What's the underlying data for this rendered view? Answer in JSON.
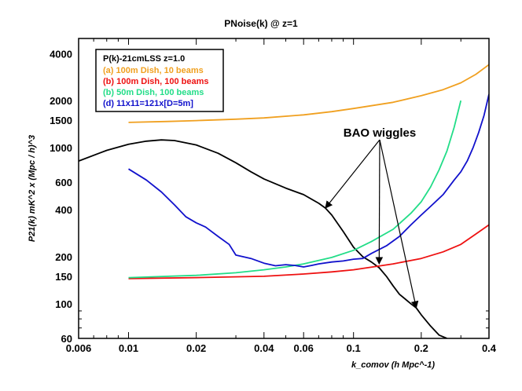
{
  "chart_data": {
    "type": "line",
    "title": "PNoise(k) @ z=1",
    "xlabel": "k_comov  (h Mpc^-1)",
    "ylabel": "P21(k) mK^2 x (Mpc / h)^3",
    "x_scale": "log",
    "y_scale": "log",
    "xlim": [
      0.006,
      0.4
    ],
    "ylim": [
      60,
      5000
    ],
    "x_ticks": [
      0.006,
      0.01,
      0.02,
      0.04,
      0.06,
      0.1,
      0.2,
      0.4
    ],
    "x_tick_labels": [
      "0.006",
      "0.01",
      "0.02",
      "0.04",
      "0.06",
      "0.1",
      "0.2",
      "0.4"
    ],
    "y_ticks": [
      60,
      100,
      150,
      200,
      400,
      600,
      1000,
      1500,
      2000,
      4000
    ],
    "y_tick_labels": [
      "60",
      "100",
      "150",
      "200",
      "400",
      "600",
      "1000",
      "1500",
      "2000",
      "4000"
    ],
    "grid": false,
    "legend_position": "top-left",
    "legend_title": "P(k)-21cmLSS z=1.0",
    "series": [
      {
        "name": "P(k)-21cmLSS z=1.0",
        "color": "#000000",
        "points": [
          [
            0.006,
            820
          ],
          [
            0.008,
            960
          ],
          [
            0.01,
            1050
          ],
          [
            0.012,
            1100
          ],
          [
            0.014,
            1120
          ],
          [
            0.016,
            1110
          ],
          [
            0.02,
            1040
          ],
          [
            0.025,
            920
          ],
          [
            0.03,
            800
          ],
          [
            0.035,
            700
          ],
          [
            0.04,
            630
          ],
          [
            0.05,
            550
          ],
          [
            0.06,
            500
          ],
          [
            0.07,
            440
          ],
          [
            0.075,
            410
          ],
          [
            0.08,
            370
          ],
          [
            0.09,
            290
          ],
          [
            0.1,
            230
          ],
          [
            0.11,
            200
          ],
          [
            0.12,
            185
          ],
          [
            0.13,
            170
          ],
          [
            0.14,
            150
          ],
          [
            0.15,
            130
          ],
          [
            0.16,
            115
          ],
          [
            0.17,
            107
          ],
          [
            0.18,
            100
          ],
          [
            0.19,
            94
          ],
          [
            0.2,
            85
          ],
          [
            0.22,
            72
          ],
          [
            0.24,
            63
          ],
          [
            0.26,
            60
          ]
        ]
      },
      {
        "name": "(a) 100m Dish, 10 beams",
        "color": "#f0a020",
        "points": [
          [
            0.01,
            1450
          ],
          [
            0.015,
            1470
          ],
          [
            0.02,
            1490
          ],
          [
            0.03,
            1520
          ],
          [
            0.04,
            1550
          ],
          [
            0.06,
            1620
          ],
          [
            0.08,
            1700
          ],
          [
            0.1,
            1780
          ],
          [
            0.15,
            1950
          ],
          [
            0.2,
            2150
          ],
          [
            0.25,
            2350
          ],
          [
            0.3,
            2600
          ],
          [
            0.35,
            2950
          ],
          [
            0.4,
            3400
          ]
        ]
      },
      {
        "name": "(b) 100m Dish, 100 beams",
        "color": "#ee1111",
        "points": [
          [
            0.01,
            145
          ],
          [
            0.02,
            147
          ],
          [
            0.04,
            150
          ],
          [
            0.06,
            155
          ],
          [
            0.08,
            160
          ],
          [
            0.1,
            165
          ],
          [
            0.15,
            180
          ],
          [
            0.2,
            195
          ],
          [
            0.25,
            215
          ],
          [
            0.3,
            240
          ],
          [
            0.35,
            280
          ],
          [
            0.4,
            320
          ]
        ]
      },
      {
        "name": "(b) 50m Dish, 100 beams",
        "color": "#22dd88",
        "points": [
          [
            0.01,
            147
          ],
          [
            0.02,
            152
          ],
          [
            0.03,
            158
          ],
          [
            0.04,
            165
          ],
          [
            0.05,
            172
          ],
          [
            0.06,
            180
          ],
          [
            0.08,
            198
          ],
          [
            0.1,
            220
          ],
          [
            0.12,
            250
          ],
          [
            0.15,
            300
          ],
          [
            0.18,
            380
          ],
          [
            0.2,
            450
          ],
          [
            0.22,
            560
          ],
          [
            0.24,
            720
          ],
          [
            0.26,
            950
          ],
          [
            0.28,
            1350
          ],
          [
            0.3,
            2000
          ]
        ]
      },
      {
        "name": "(d) 11x11=121x[D=5m]",
        "color": "#1111cc",
        "points": [
          [
            0.01,
            730
          ],
          [
            0.012,
            620
          ],
          [
            0.014,
            520
          ],
          [
            0.016,
            430
          ],
          [
            0.018,
            360
          ],
          [
            0.02,
            330
          ],
          [
            0.022,
            310
          ],
          [
            0.025,
            270
          ],
          [
            0.028,
            240
          ],
          [
            0.03,
            205
          ],
          [
            0.035,
            195
          ],
          [
            0.04,
            182
          ],
          [
            0.045,
            175
          ],
          [
            0.05,
            178
          ],
          [
            0.055,
            176
          ],
          [
            0.06,
            172
          ],
          [
            0.065,
            176
          ],
          [
            0.07,
            180
          ],
          [
            0.08,
            185
          ],
          [
            0.09,
            188
          ],
          [
            0.1,
            193
          ],
          [
            0.11,
            195
          ],
          [
            0.12,
            210
          ],
          [
            0.14,
            235
          ],
          [
            0.16,
            270
          ],
          [
            0.18,
            320
          ],
          [
            0.2,
            370
          ],
          [
            0.22,
            420
          ],
          [
            0.25,
            500
          ],
          [
            0.28,
            620
          ],
          [
            0.3,
            700
          ],
          [
            0.32,
            820
          ],
          [
            0.34,
            1000
          ],
          [
            0.36,
            1250
          ],
          [
            0.38,
            1600
          ],
          [
            0.4,
            2200
          ]
        ]
      }
    ],
    "annotations": [
      {
        "text": "BAO wiggles",
        "arrow_targets": [
          [
            0.075,
            410
          ],
          [
            0.13,
            180
          ],
          [
            0.19,
            94
          ]
        ]
      }
    ]
  }
}
